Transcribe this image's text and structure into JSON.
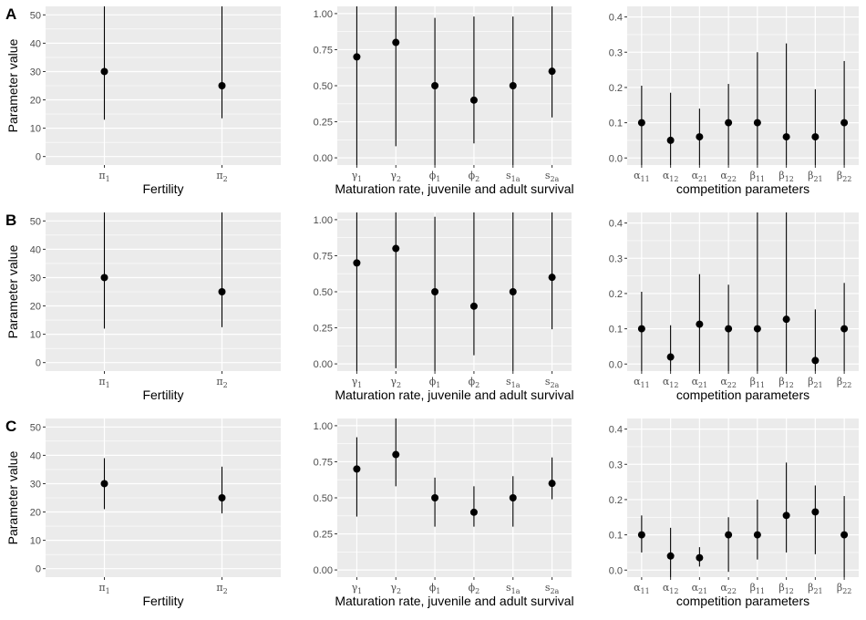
{
  "figure": {
    "row_labels": [
      "A",
      "B",
      "C"
    ],
    "y_label": "Parameter value"
  },
  "chart_data": [
    {
      "id": "A1",
      "row": "A",
      "type": "scatter",
      "xlabel": "Fertility",
      "ylabel": "Parameter value",
      "ylim": [
        -3,
        53
      ],
      "yticks": [
        0,
        10,
        20,
        30,
        40,
        50
      ],
      "categories": [
        {
          "base": "π",
          "sub": "1"
        },
        {
          "base": "π",
          "sub": "2"
        }
      ],
      "values": [
        30,
        25
      ],
      "lower": [
        13,
        13.5
      ],
      "upper": [
        53,
        53
      ],
      "grid": true
    },
    {
      "id": "A2",
      "row": "A",
      "type": "scatter",
      "xlabel": "Maturation rate, juvenile and adult survival",
      "ylabel": "",
      "ylim": [
        -0.05,
        1.05
      ],
      "yticks": [
        0.0,
        0.25,
        0.5,
        0.75,
        1.0
      ],
      "categories": [
        {
          "base": "γ",
          "sub": "1"
        },
        {
          "base": "γ",
          "sub": "2"
        },
        {
          "base": "ϕ",
          "sub": "1"
        },
        {
          "base": "ϕ",
          "sub": "2"
        },
        {
          "base": "s",
          "sub": "1a"
        },
        {
          "base": "s",
          "sub": "2a"
        }
      ],
      "values": [
        0.7,
        0.8,
        0.5,
        0.4,
        0.5,
        0.6
      ],
      "lower": [
        -0.05,
        0.08,
        -0.05,
        0.1,
        -0.05,
        0.28
      ],
      "upper": [
        1.05,
        1.05,
        0.97,
        0.98,
        0.98,
        1.05
      ],
      "grid": true
    },
    {
      "id": "A3",
      "row": "A",
      "type": "scatter",
      "xlabel": "competition parameters",
      "ylabel": "",
      "ylim": [
        -0.02,
        0.43
      ],
      "yticks": [
        0.0,
        0.1,
        0.2,
        0.3,
        0.4
      ],
      "categories": [
        {
          "base": "α",
          "sub": "11"
        },
        {
          "base": "α",
          "sub": "12"
        },
        {
          "base": "α",
          "sub": "21"
        },
        {
          "base": "α",
          "sub": "22"
        },
        {
          "base": "β",
          "sub": "11"
        },
        {
          "base": "β",
          "sub": "12"
        },
        {
          "base": "β",
          "sub": "21"
        },
        {
          "base": "β",
          "sub": "22"
        }
      ],
      "values": [
        0.1,
        0.05,
        0.06,
        0.1,
        0.1,
        0.06,
        0.06,
        0.1
      ],
      "lower": [
        -0.02,
        -0.02,
        -0.02,
        -0.02,
        -0.02,
        -0.02,
        -0.02,
        -0.02
      ],
      "upper": [
        0.205,
        0.185,
        0.14,
        0.21,
        0.3,
        0.325,
        0.195,
        0.275
      ],
      "grid": true
    },
    {
      "id": "B1",
      "row": "B",
      "type": "scatter",
      "xlabel": "Fertility",
      "ylabel": "Parameter value",
      "ylim": [
        -3,
        53
      ],
      "yticks": [
        0,
        10,
        20,
        30,
        40,
        50
      ],
      "categories": [
        {
          "base": "π",
          "sub": "1"
        },
        {
          "base": "π",
          "sub": "2"
        }
      ],
      "values": [
        30,
        25
      ],
      "lower": [
        12,
        12.5
      ],
      "upper": [
        53,
        53
      ],
      "grid": true
    },
    {
      "id": "B2",
      "row": "B",
      "type": "scatter",
      "xlabel": "Maturation rate, juvenile and adult survival",
      "ylabel": "",
      "ylim": [
        -0.05,
        1.05
      ],
      "yticks": [
        0.0,
        0.25,
        0.5,
        0.75,
        1.0
      ],
      "categories": [
        {
          "base": "γ",
          "sub": "1"
        },
        {
          "base": "γ",
          "sub": "2"
        },
        {
          "base": "ϕ",
          "sub": "1"
        },
        {
          "base": "ϕ",
          "sub": "2"
        },
        {
          "base": "s",
          "sub": "1a"
        },
        {
          "base": "s",
          "sub": "2a"
        }
      ],
      "values": [
        0.7,
        0.8,
        0.5,
        0.4,
        0.5,
        0.6
      ],
      "lower": [
        -0.05,
        -0.03,
        -0.05,
        0.06,
        -0.05,
        0.24
      ],
      "upper": [
        1.05,
        1.05,
        1.02,
        1.05,
        1.05,
        1.05
      ],
      "grid": true
    },
    {
      "id": "B3",
      "row": "B",
      "type": "scatter",
      "xlabel": "competition parameters",
      "ylabel": "",
      "ylim": [
        -0.02,
        0.43
      ],
      "yticks": [
        0.0,
        0.1,
        0.2,
        0.3,
        0.4
      ],
      "categories": [
        {
          "base": "α",
          "sub": "11"
        },
        {
          "base": "α",
          "sub": "12"
        },
        {
          "base": "α",
          "sub": "21"
        },
        {
          "base": "α",
          "sub": "22"
        },
        {
          "base": "β",
          "sub": "11"
        },
        {
          "base": "β",
          "sub": "12"
        },
        {
          "base": "β",
          "sub": "21"
        },
        {
          "base": "β",
          "sub": "22"
        }
      ],
      "values": [
        0.1,
        0.02,
        0.113,
        0.1,
        0.1,
        0.127,
        0.01,
        0.1
      ],
      "lower": [
        -0.02,
        -0.02,
        -0.02,
        -0.02,
        -0.02,
        -0.02,
        -0.02,
        -0.02
      ],
      "upper": [
        0.205,
        0.11,
        0.255,
        0.225,
        0.43,
        0.43,
        0.155,
        0.23
      ],
      "grid": true
    },
    {
      "id": "C1",
      "row": "C",
      "type": "scatter",
      "xlabel": "Fertility",
      "ylabel": "Parameter value",
      "ylim": [
        -3,
        53
      ],
      "yticks": [
        0,
        10,
        20,
        30,
        40,
        50
      ],
      "categories": [
        {
          "base": "π",
          "sub": "1"
        },
        {
          "base": "π",
          "sub": "2"
        }
      ],
      "values": [
        30,
        25
      ],
      "lower": [
        21,
        19.5
      ],
      "upper": [
        39,
        36
      ],
      "grid": true
    },
    {
      "id": "C2",
      "row": "C",
      "type": "scatter",
      "xlabel": "Maturation rate, juvenile and adult survival",
      "ylabel": "",
      "ylim": [
        -0.05,
        1.05
      ],
      "yticks": [
        0.0,
        0.25,
        0.5,
        0.75,
        1.0
      ],
      "categories": [
        {
          "base": "γ",
          "sub": "1"
        },
        {
          "base": "γ",
          "sub": "2"
        },
        {
          "base": "ϕ",
          "sub": "1"
        },
        {
          "base": "ϕ",
          "sub": "2"
        },
        {
          "base": "s",
          "sub": "1a"
        },
        {
          "base": "s",
          "sub": "2a"
        }
      ],
      "values": [
        0.7,
        0.8,
        0.5,
        0.4,
        0.5,
        0.6
      ],
      "lower": [
        0.37,
        0.58,
        0.3,
        0.3,
        0.3,
        0.49
      ],
      "upper": [
        0.92,
        1.05,
        0.64,
        0.58,
        0.65,
        0.78
      ],
      "grid": true
    },
    {
      "id": "C3",
      "row": "C",
      "type": "scatter",
      "xlabel": "competition parameters",
      "ylabel": "",
      "ylim": [
        -0.02,
        0.43
      ],
      "yticks": [
        0.0,
        0.1,
        0.2,
        0.3,
        0.4
      ],
      "categories": [
        {
          "base": "α",
          "sub": "11"
        },
        {
          "base": "α",
          "sub": "12"
        },
        {
          "base": "α",
          "sub": "21"
        },
        {
          "base": "α",
          "sub": "22"
        },
        {
          "base": "β",
          "sub": "11"
        },
        {
          "base": "β",
          "sub": "12"
        },
        {
          "base": "β",
          "sub": "21"
        },
        {
          "base": "β",
          "sub": "22"
        }
      ],
      "values": [
        0.1,
        0.04,
        0.035,
        0.1,
        0.1,
        0.155,
        0.165,
        0.1
      ],
      "lower": [
        0.05,
        -0.02,
        0.01,
        -0.005,
        0.03,
        0.05,
        0.045,
        -0.02
      ],
      "upper": [
        0.155,
        0.12,
        0.065,
        0.15,
        0.2,
        0.305,
        0.24,
        0.21
      ],
      "grid": true
    }
  ]
}
